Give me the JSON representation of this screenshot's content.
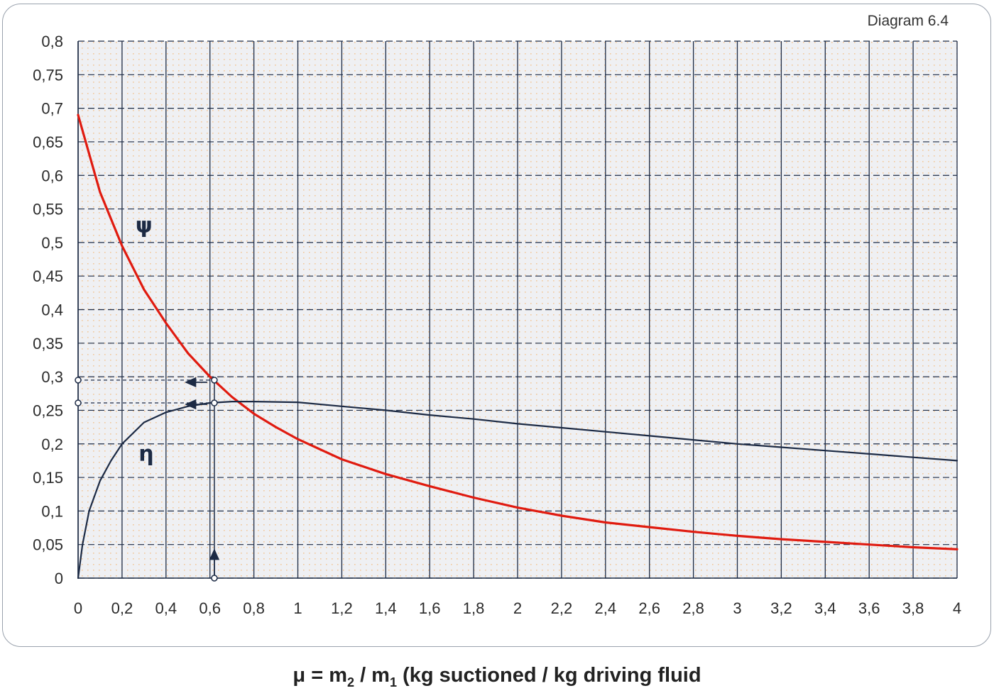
{
  "chart_data": {
    "type": "line",
    "title": "Diagram 6.4",
    "xlabel_prefix": "μ = m",
    "xlabel_sub1": "2",
    "xlabel_mid": " / m",
    "xlabel_sub2": "1",
    "xlabel_suffix": " (kg suctioned / kg driving fluid",
    "xlim": [
      0,
      4
    ],
    "ylim": [
      0,
      0.8
    ],
    "x_ticks": [
      "0",
      "0,2",
      "0,4",
      "0,6",
      "0,8",
      "1",
      "1,2",
      "1,4",
      "1,6",
      "1,8",
      "2",
      "2,2",
      "2,4",
      "2,6",
      "2,8",
      "3",
      "3,2",
      "3,4",
      "3,6",
      "3,8",
      "4"
    ],
    "y_ticks": [
      "0",
      "0,05",
      "0,1",
      "0,15",
      "0,2",
      "0,25",
      "0,3",
      "0,35",
      "0,4",
      "0,45",
      "0,5",
      "0,55",
      "0,6",
      "0,65",
      "0,7",
      "0,75",
      "0,8"
    ],
    "grid": true,
    "series": [
      {
        "name": "ψ",
        "color": "#e01b10",
        "x": [
          0,
          0.1,
          0.2,
          0.3,
          0.4,
          0.5,
          0.6,
          0.7,
          0.8,
          0.9,
          1.0,
          1.2,
          1.4,
          1.6,
          1.8,
          2.0,
          2.2,
          2.4,
          2.6,
          2.8,
          3.0,
          3.2,
          3.4,
          3.6,
          3.8,
          4.0
        ],
        "y": [
          0.69,
          0.575,
          0.495,
          0.43,
          0.38,
          0.335,
          0.3,
          0.27,
          0.245,
          0.225,
          0.207,
          0.177,
          0.155,
          0.137,
          0.12,
          0.105,
          0.093,
          0.083,
          0.076,
          0.069,
          0.063,
          0.058,
          0.054,
          0.05,
          0.046,
          0.043
        ]
      },
      {
        "name": "η",
        "color": "#1c2a44",
        "x": [
          0,
          0.02,
          0.05,
          0.1,
          0.15,
          0.2,
          0.3,
          0.4,
          0.5,
          0.6,
          0.7,
          0.8,
          1.0,
          1.2,
          1.4,
          1.6,
          1.8,
          2.0,
          2.2,
          2.4,
          2.6,
          2.8,
          3.0,
          3.2,
          3.4,
          3.6,
          3.8,
          4.0
        ],
        "y": [
          0.0,
          0.05,
          0.1,
          0.145,
          0.175,
          0.2,
          0.232,
          0.247,
          0.256,
          0.261,
          0.263,
          0.263,
          0.262,
          0.256,
          0.25,
          0.243,
          0.237,
          0.23,
          0.224,
          0.218,
          0.212,
          0.206,
          0.2,
          0.195,
          0.19,
          0.185,
          0.18,
          0.175
        ]
      }
    ],
    "annotations": {
      "read_x": 0.62,
      "psi_value": 0.295,
      "eta_value": 0.261
    }
  }
}
